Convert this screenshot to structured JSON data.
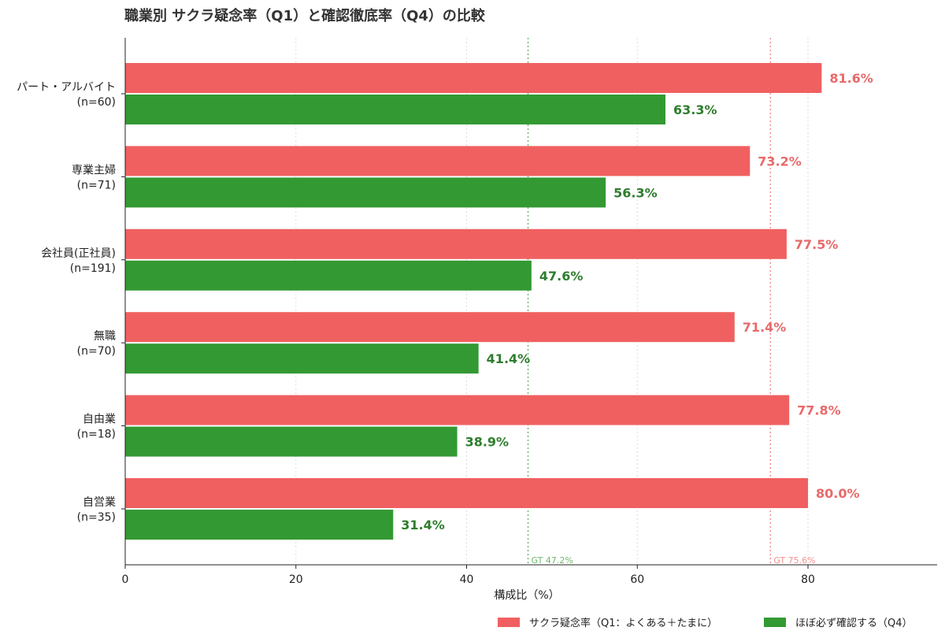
{
  "chart_data": {
    "type": "bar",
    "orientation": "horizontal",
    "title": "職業別 サクラ疑念率（Q1）と確認徹底率（Q4）の比較",
    "xlabel": "構成比（%）",
    "ylabel": "",
    "xlim": [
      0,
      95
    ],
    "xticks": [
      0,
      20,
      40,
      60,
      80
    ],
    "grid": "vertical dotted",
    "legend_position": "bottom-right",
    "categories": [
      {
        "label": "パート・アルバイト",
        "n": "(n=60)"
      },
      {
        "label": "専業主婦",
        "n": "(n=71)"
      },
      {
        "label": "会社員(正社員)",
        "n": "(n=191)"
      },
      {
        "label": "無職",
        "n": "(n=70)"
      },
      {
        "label": "自由業",
        "n": "(n=18)"
      },
      {
        "label": "自営業",
        "n": "(n=35)"
      }
    ],
    "series": [
      {
        "name": "サクラ疑念率（Q1：よくある＋たまに）",
        "color": "#f06060",
        "values": [
          81.6,
          73.2,
          77.5,
          71.4,
          77.8,
          80.0
        ],
        "labels": [
          "81.6%",
          "73.2%",
          "77.5%",
          "71.4%",
          "77.8%",
          "80.0%"
        ]
      },
      {
        "name": "ほぼ必ず確認する（Q4）",
        "color": "#339933",
        "values": [
          63.3,
          56.3,
          47.6,
          41.4,
          38.9,
          31.4
        ],
        "labels": [
          "63.3%",
          "56.3%",
          "47.6%",
          "41.4%",
          "38.9%",
          "31.4%"
        ]
      }
    ],
    "reference_lines": [
      {
        "label": "GT 47.2%",
        "value": 47.2,
        "color": "#339933"
      },
      {
        "label": "GT 75.6%",
        "value": 75.6,
        "color": "#f06060"
      }
    ]
  }
}
